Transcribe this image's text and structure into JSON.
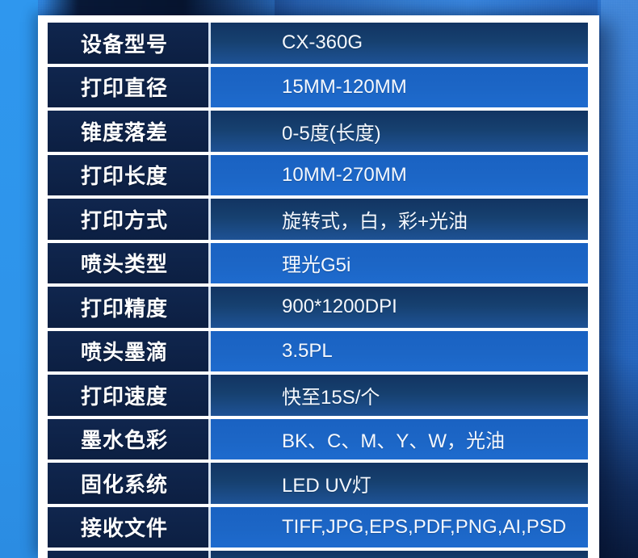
{
  "device": {
    "model": "CX-360G"
  },
  "spec_table": {
    "rows": [
      {
        "label": "设备型号",
        "value": "CX-360G"
      },
      {
        "label": "打印直径",
        "value": "15MM-120MM"
      },
      {
        "label": "锥度落差",
        "value": "0-5度(长度)"
      },
      {
        "label": "打印长度",
        "value": "10MM-270MM"
      },
      {
        "label": "打印方式",
        "value": "旋转式，白，彩+光油"
      },
      {
        "label": "喷头类型",
        "value": "理光G5i"
      },
      {
        "label": "打印精度",
        "value": "900*1200DPI"
      },
      {
        "label": "喷头墨滴",
        "value": "3.5PL"
      },
      {
        "label": "打印速度",
        "value": "快至15S/个"
      },
      {
        "label": "墨水色彩",
        "value": "BK、C、M、Y、W，光油"
      },
      {
        "label": "固化系统",
        "value": "LED UV灯"
      },
      {
        "label": "接收文件",
        "value": "TIFF,JPG,EPS,PDF,PNG,AI,PSD"
      }
    ]
  },
  "palette": {
    "background_blue": "#2f7ccf",
    "left_gutter_blue": "#2e96ec",
    "frame_white": "#ffffff",
    "label_cell_navy": "#0e2348",
    "value_dark_top": "#123462",
    "value_dark_bottom": "#1e5295",
    "value_bright_blue": "#1c66c6",
    "separator_white": "#ffffff",
    "text_white": "#ffffff"
  }
}
